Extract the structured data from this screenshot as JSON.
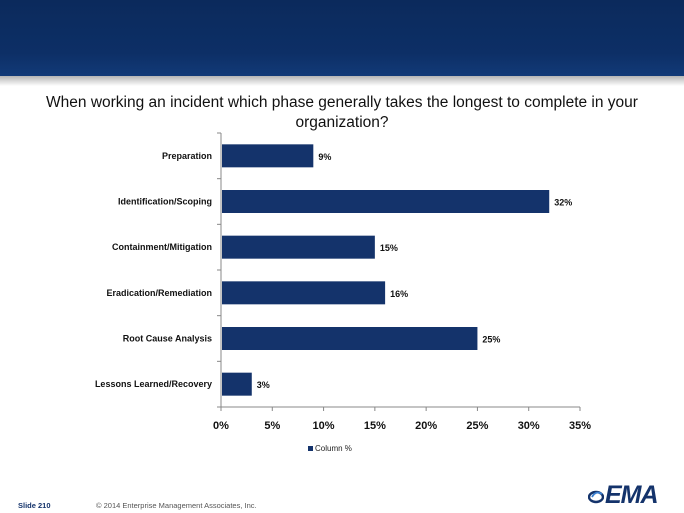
{
  "title": "When working an incident which phase generally takes the longest to complete in your organization?",
  "chart_data": {
    "type": "bar",
    "orientation": "horizontal",
    "title": "When working an incident which phase generally takes the longest to complete in your organization?",
    "categories": [
      "Preparation",
      "Identification/Scoping",
      "Containment/Mitigation",
      "Eradication/Remediation",
      "Root Cause Analysis",
      "Lessons Learned/Recovery"
    ],
    "series": [
      {
        "name": "Column %",
        "values": [
          9,
          32,
          15,
          16,
          25,
          3
        ],
        "labels": [
          "9%",
          "32%",
          "15%",
          "16%",
          "25%",
          "3%"
        ]
      }
    ],
    "xlim": [
      0,
      35
    ],
    "xticks": [
      0,
      5,
      10,
      15,
      20,
      25,
      30,
      35
    ],
    "xtick_labels": [
      "0%",
      "5%",
      "10%",
      "15%",
      "20%",
      "25%",
      "30%",
      "35%"
    ],
    "xlabel": "",
    "ylabel": "",
    "legend": "bottom",
    "grid": false,
    "bar_color": "#14336b"
  },
  "legend_label": "Column %",
  "footer": {
    "slide": "Slide  210",
    "copyright": "© 2014 Enterprise Management Associates, Inc."
  },
  "logo_text": "EMA",
  "colors": {
    "header": "#0d2f66",
    "accent": "#14336b"
  }
}
